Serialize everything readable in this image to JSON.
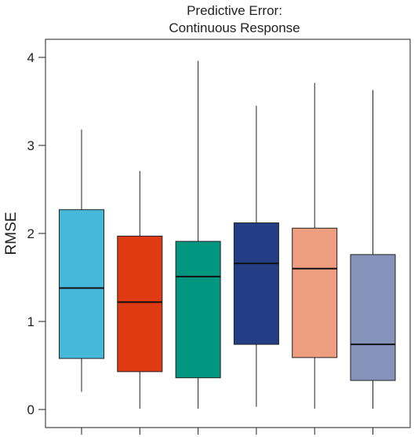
{
  "chart_data": {
    "type": "boxplot",
    "title_lines": [
      "Predictive Error:",
      "Continuous Response"
    ],
    "ylabel": "RMSE",
    "xlabel": "",
    "ylim": [
      0,
      4
    ],
    "yticks": [
      0,
      1,
      2,
      3,
      4
    ],
    "grid": false,
    "legend": "none",
    "series": [
      {
        "color": "#46B8DA",
        "whisker_low": 0.2,
        "q1": 0.58,
        "median": 1.38,
        "q3": 2.27,
        "whisker_high": 3.18
      },
      {
        "color": "#E03A12",
        "whisker_low": 0.01,
        "q1": 0.43,
        "median": 1.22,
        "q3": 1.97,
        "whisker_high": 2.71
      },
      {
        "color": "#00967F",
        "whisker_low": 0.01,
        "q1": 0.36,
        "median": 1.51,
        "q3": 1.91,
        "whisker_high": 3.96
      },
      {
        "color": "#233E85",
        "whisker_low": 0.03,
        "q1": 0.74,
        "median": 1.66,
        "q3": 2.12,
        "whisker_high": 3.45
      },
      {
        "color": "#F09E80",
        "whisker_low": 0.01,
        "q1": 0.59,
        "median": 1.6,
        "q3": 2.06,
        "whisker_high": 3.71
      },
      {
        "color": "#8593BB",
        "whisker_low": 0.01,
        "q1": 0.33,
        "median": 0.74,
        "q3": 1.76,
        "whisker_high": 3.63
      }
    ]
  }
}
